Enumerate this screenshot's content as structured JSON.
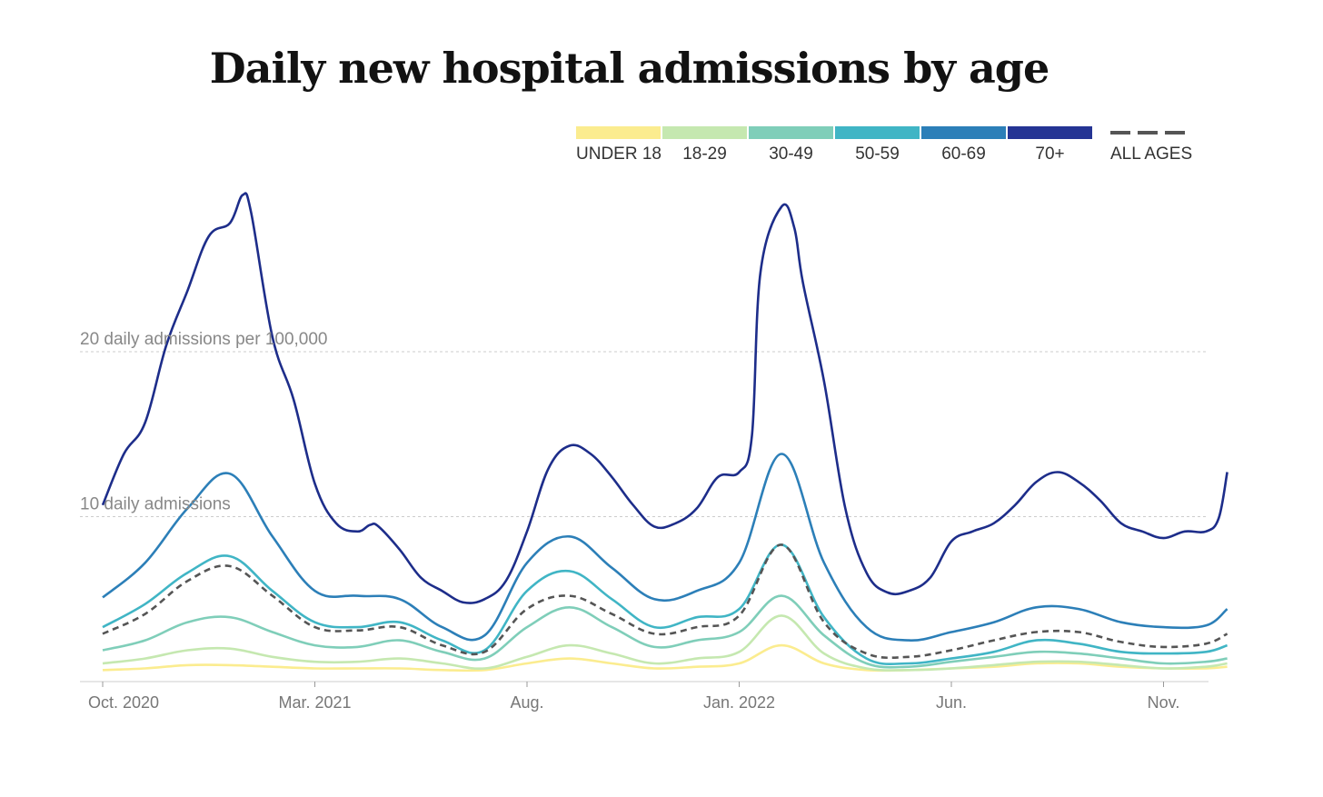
{
  "chart_data": {
    "type": "line",
    "title": "Daily new hospital admissions by age",
    "ylabel": "daily admissions per 100,000",
    "ylim": [
      0,
      30
    ],
    "y_gridlines": [
      {
        "value": 10,
        "label": "10 daily admissions"
      },
      {
        "value": 20,
        "label": "20 daily admissions per 100,000"
      }
    ],
    "x_unit": "months since Oct. 2020",
    "x_ticks": [
      {
        "value": 0,
        "label": "Oct. 2020"
      },
      {
        "value": 5,
        "label": "Mar. 2021"
      },
      {
        "value": 10,
        "label": "Aug."
      },
      {
        "value": 15,
        "label": "Jan. 2022"
      },
      {
        "value": 20,
        "label": "Jun."
      },
      {
        "value": 25,
        "label": "Nov."
      }
    ],
    "legend_placement": "top-right",
    "x": [
      0,
      1,
      2,
      3,
      4,
      5,
      6,
      7,
      8,
      9,
      10,
      11,
      12,
      13,
      14,
      15,
      16,
      17,
      18,
      19,
      20,
      21,
      22,
      23,
      24,
      25,
      26,
      26.5
    ],
    "series": [
      {
        "name": "UNDER 18",
        "color": "#fbec8f",
        "dashed": false,
        "values": [
          0.7,
          0.8,
          1.0,
          1.0,
          0.9,
          0.8,
          0.8,
          0.8,
          0.7,
          0.7,
          1.1,
          1.4,
          1.1,
          0.8,
          0.9,
          1.1,
          2.2,
          1.1,
          0.7,
          0.7,
          0.8,
          0.9,
          1.1,
          1.1,
          0.9,
          0.8,
          0.8,
          0.9
        ]
      },
      {
        "name": "18-29",
        "color": "#c5e8b0",
        "dashed": false,
        "values": [
          1.1,
          1.4,
          1.9,
          2.0,
          1.5,
          1.2,
          1.2,
          1.4,
          1.1,
          0.8,
          1.5,
          2.2,
          1.7,
          1.1,
          1.4,
          1.8,
          4.0,
          1.7,
          0.8,
          0.7,
          0.8,
          1.0,
          1.2,
          1.2,
          1.0,
          0.8,
          0.9,
          1.1
        ]
      },
      {
        "name": "30-49",
        "color": "#7fceb9",
        "dashed": false,
        "values": [
          1.9,
          2.5,
          3.6,
          3.9,
          3.0,
          2.2,
          2.1,
          2.5,
          1.8,
          1.4,
          3.3,
          4.5,
          3.3,
          2.1,
          2.5,
          3.0,
          5.2,
          2.8,
          1.1,
          0.9,
          1.2,
          1.5,
          1.8,
          1.7,
          1.4,
          1.1,
          1.2,
          1.4
        ]
      },
      {
        "name": "50-59",
        "color": "#40b5c5",
        "dashed": false,
        "values": [
          3.3,
          4.7,
          6.6,
          7.6,
          5.5,
          3.6,
          3.3,
          3.6,
          2.5,
          1.9,
          5.5,
          6.7,
          5.0,
          3.3,
          3.9,
          4.4,
          8.3,
          3.9,
          1.4,
          1.1,
          1.4,
          1.8,
          2.5,
          2.3,
          1.8,
          1.7,
          1.8,
          2.2
        ]
      },
      {
        "name": "60-69",
        "color": "#2c7fb8",
        "dashed": false,
        "values": [
          5.1,
          7.2,
          10.5,
          12.6,
          8.8,
          5.5,
          5.2,
          5.0,
          3.3,
          2.8,
          7.2,
          8.8,
          6.9,
          5.0,
          5.5,
          7.2,
          13.8,
          7.2,
          3.3,
          2.5,
          3.0,
          3.6,
          4.5,
          4.4,
          3.6,
          3.3,
          3.4,
          4.4
        ]
      },
      {
        "name": "70+",
        "color": "#253494",
        "dashed": false,
        "x": [
          0,
          0.5,
          1,
          1.5,
          2,
          2.5,
          3,
          3.3,
          3.5,
          4,
          4.5,
          5,
          5.5,
          6,
          6.3,
          6.5,
          7,
          7.5,
          8,
          8.5,
          9,
          9.5,
          10,
          10.5,
          11,
          11.5,
          12,
          12.5,
          13,
          13.5,
          14,
          14.5,
          15,
          15.3,
          15.5,
          16,
          16.3,
          16.5,
          17,
          17.5,
          18,
          18.5,
          19,
          19.5,
          20,
          20.5,
          21,
          21.5,
          22,
          22.5,
          23,
          23.5,
          24,
          24.5,
          25,
          25.5,
          26,
          26.3,
          26.5
        ],
        "values": [
          10.7,
          13.8,
          15.7,
          20.4,
          23.7,
          27.0,
          27.8,
          29.5,
          28.4,
          20.9,
          17.1,
          12.0,
          9.6,
          9.1,
          9.5,
          9.4,
          8.0,
          6.3,
          5.5,
          4.8,
          5.0,
          6.1,
          9.1,
          12.9,
          14.3,
          13.8,
          12.4,
          10.7,
          9.4,
          9.6,
          10.5,
          12.4,
          12.7,
          14.9,
          24.8,
          28.8,
          27.5,
          24.2,
          18.2,
          10.5,
          6.6,
          5.4,
          5.5,
          6.3,
          8.5,
          9.1,
          9.6,
          10.7,
          12.1,
          12.7,
          12.1,
          11.0,
          9.6,
          9.1,
          8.7,
          9.1,
          9.1,
          9.9,
          12.7
        ]
      },
      {
        "name": "ALL AGES",
        "color": "#555555",
        "dashed": true,
        "values": [
          2.9,
          4.1,
          6.1,
          7.0,
          5.2,
          3.3,
          3.1,
          3.3,
          2.2,
          1.8,
          4.4,
          5.2,
          4.1,
          2.9,
          3.3,
          4.0,
          8.3,
          3.6,
          1.7,
          1.5,
          1.9,
          2.5,
          3.0,
          3.0,
          2.4,
          2.1,
          2.3,
          2.9
        ]
      }
    ]
  }
}
